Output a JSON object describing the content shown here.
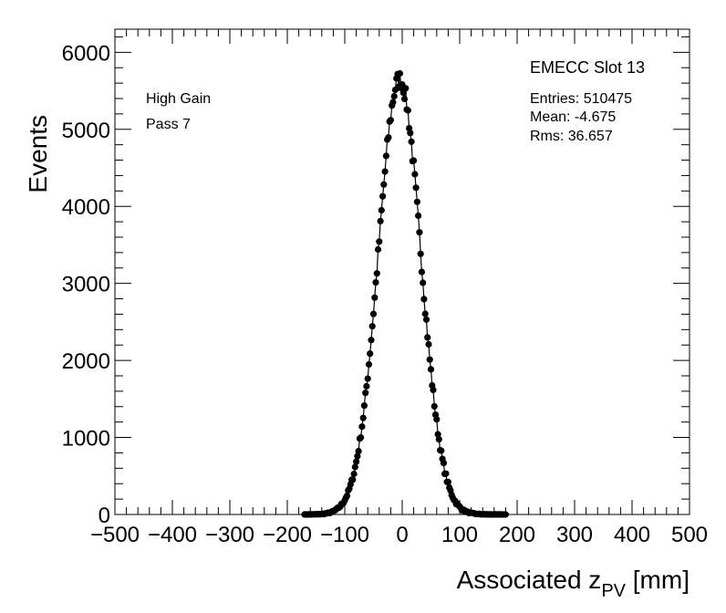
{
  "chart_data": {
    "type": "scatter",
    "title": "",
    "xlabel": "Associated z",
    "xlabel_subscript": "PV",
    "xlabel_unit": " [mm]",
    "ylabel": "Events",
    "xlim": [
      -500,
      500
    ],
    "ylim": [
      0,
      6300
    ],
    "x_ticks": [
      -500,
      -400,
      -300,
      -200,
      -100,
      0,
      100,
      200,
      300,
      400,
      500
    ],
    "x_tick_labels": [
      "−500",
      "−400",
      "−300",
      "−200",
      "−100",
      "0",
      "100",
      "200",
      "300",
      "400",
      "500"
    ],
    "y_ticks": [
      0,
      1000,
      2000,
      3000,
      4000,
      5000,
      6000
    ],
    "y_tick_labels": [
      "0",
      "1000",
      "2000",
      "3000",
      "4000",
      "5000",
      "6000"
    ],
    "grid": false,
    "annotations": {
      "left": [
        "High Gain",
        "Pass 7"
      ],
      "slot": "EMECC Slot 13",
      "stats": [
        "Entries: 510475",
        "Mean: -4.675",
        "Rms: 36.657"
      ]
    },
    "series": [
      {
        "marker": "filled-circle",
        "color": "#000000",
        "distribution": "gaussian",
        "peak": 5650,
        "mean": -4.675,
        "sigma": 36.657,
        "x_range": [
          -170,
          180
        ],
        "bin_width": 2
      }
    ]
  }
}
